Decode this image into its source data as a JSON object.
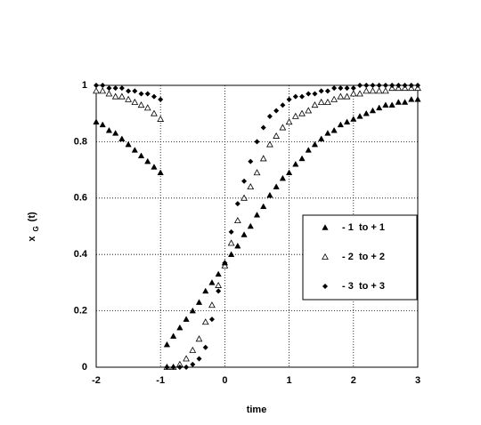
{
  "chart_data": {
    "type": "scatter",
    "xlabel": "time",
    "ylabel": [
      "x",
      "G",
      "(t)"
    ],
    "x": [
      -2,
      -1.9,
      -1.8,
      -1.7,
      -1.6,
      -1.5,
      -1.4,
      -1.3,
      -1.2,
      -1.1,
      -1,
      -0.9,
      -0.8,
      -0.7,
      -0.6,
      -0.5,
      -0.4,
      -0.3,
      -0.2,
      -0.1,
      0,
      0.1,
      0.2,
      0.3,
      0.4,
      0.5,
      0.6,
      0.7,
      0.8,
      0.9,
      1,
      1.1,
      1.2,
      1.3,
      1.4,
      1.5,
      1.6,
      1.7,
      1.8,
      1.9,
      2,
      2.1,
      2.2,
      2.3,
      2.4,
      2.5,
      2.6,
      2.7,
      2.8,
      2.9,
      3
    ],
    "series": [
      {
        "name": "- 1  to + 1",
        "color": "#000000",
        "marker": "filled-triangle",
        "values": [
          0.87,
          0.86,
          0.84,
          0.83,
          0.81,
          0.79,
          0.77,
          0.75,
          0.73,
          0.71,
          0.69,
          0.08,
          0.11,
          0.14,
          0.17,
          0.2,
          0.23,
          0.27,
          0.3,
          0.33,
          0.37,
          0.4,
          0.43,
          0.47,
          0.5,
          0.54,
          0.57,
          0.61,
          0.64,
          0.67,
          0.69,
          0.72,
          0.74,
          0.77,
          0.79,
          0.81,
          0.83,
          0.84,
          0.86,
          0.87,
          0.88,
          0.89,
          0.9,
          0.91,
          0.92,
          0.93,
          0.93,
          0.94,
          0.94,
          0.95,
          0.95
        ]
      },
      {
        "name": "- 2  to + 2",
        "color": "#000000",
        "marker": "open-triangle",
        "values": [
          0.98,
          0.98,
          0.97,
          0.96,
          0.96,
          0.95,
          0.94,
          0.93,
          0.92,
          0.9,
          0.88,
          0,
          0,
          0.01,
          0.03,
          0.06,
          0.1,
          0.16,
          0.22,
          0.29,
          0.36,
          0.44,
          0.52,
          0.6,
          0.64,
          0.69,
          0.74,
          0.79,
          0.82,
          0.85,
          0.87,
          0.89,
          0.9,
          0.91,
          0.93,
          0.94,
          0.94,
          0.95,
          0.96,
          0.96,
          0.97,
          0.97,
          0.98,
          0.98,
          0.98,
          0.98,
          0.99,
          0.99,
          0.99,
          0.99,
          0.99
        ]
      },
      {
        "name": "- 3  to + 3",
        "color": "#000000",
        "marker": "diamond",
        "values": [
          1,
          1,
          0.99,
          0.99,
          0.99,
          0.98,
          0.98,
          0.97,
          0.97,
          0.96,
          0.95,
          0,
          0,
          0,
          0,
          0.01,
          0.03,
          0.07,
          0.17,
          0.27,
          0.37,
          0.48,
          0.58,
          0.66,
          0.73,
          0.8,
          0.85,
          0.89,
          0.91,
          0.93,
          0.95,
          0.96,
          0.96,
          0.97,
          0.97,
          0.98,
          0.98,
          0.99,
          0.99,
          0.99,
          0.99,
          1,
          1,
          1,
          1,
          1,
          1,
          1,
          1,
          1,
          1
        ]
      }
    ],
    "xlim": [
      -2,
      3
    ],
    "xticks": [
      -2,
      -1,
      0,
      1,
      2,
      3
    ],
    "ylim": [
      0,
      1
    ],
    "yticks": [
      0,
      0.2,
      0.4,
      0.6,
      0.8,
      1
    ],
    "grid": true,
    "legend": "right"
  }
}
